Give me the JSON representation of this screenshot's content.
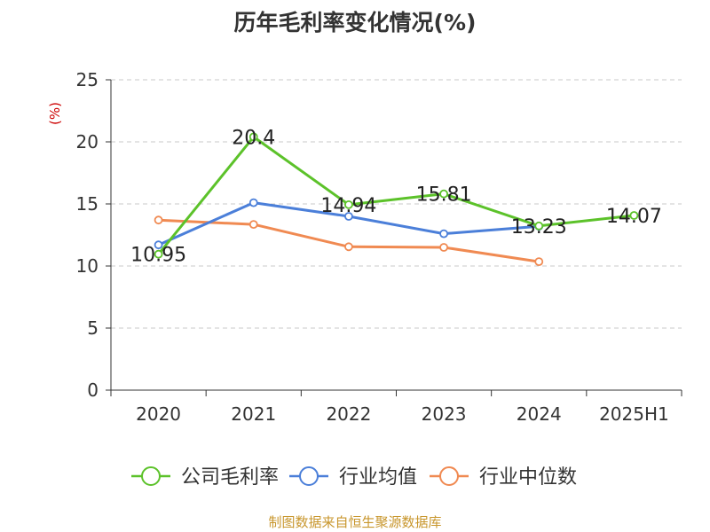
{
  "chart_data": {
    "type": "line",
    "title": "历年毛利率变化情况(%)",
    "ylabel": "(%)",
    "xlabel": "",
    "categories": [
      "2020",
      "2021",
      "2022",
      "2023",
      "2024",
      "2025H1"
    ],
    "ylim": [
      0,
      25
    ],
    "yticks": [
      0,
      5,
      10,
      15,
      20,
      25
    ],
    "grid": "horizontal dashed",
    "legend_position": "bottom",
    "series": [
      {
        "name": "公司毛利率",
        "color": "#5cc22a",
        "values": [
          10.95,
          20.4,
          14.94,
          15.81,
          13.23,
          14.07
        ],
        "data_labels": [
          "10.95",
          "20.4",
          "14.94",
          "15.81",
          "13.23",
          "14.07"
        ]
      },
      {
        "name": "行业均值",
        "color": "#4b7fd9",
        "values": [
          11.7,
          15.1,
          14.0,
          12.6,
          13.2,
          null
        ]
      },
      {
        "name": "行业中位数",
        "color": "#f08a52",
        "values": [
          13.7,
          13.35,
          11.55,
          11.5,
          10.35,
          null
        ]
      }
    ]
  },
  "footer": {
    "source": "制图数据来自恒生聚源数据库"
  }
}
